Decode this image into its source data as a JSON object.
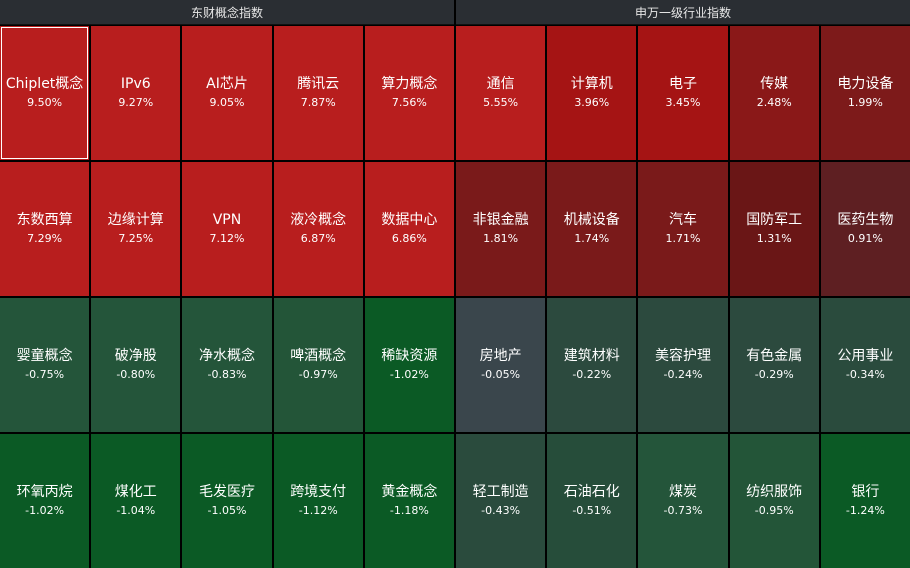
{
  "panels": [
    {
      "title": "东财概念指数",
      "cells": [
        {
          "name": "Chiplet概念",
          "value": "9.50%",
          "color": "#b81e1e",
          "selected": true
        },
        {
          "name": "IPv6",
          "value": "9.27%",
          "color": "#b81e1e"
        },
        {
          "name": "AI芯片",
          "value": "9.05%",
          "color": "#b81e1e"
        },
        {
          "name": "腾讯云",
          "value": "7.87%",
          "color": "#b81e1e"
        },
        {
          "name": "算力概念",
          "value": "7.56%",
          "color": "#b81e1e"
        },
        {
          "name": "东数西算",
          "value": "7.29%",
          "color": "#b81e1e"
        },
        {
          "name": "边缘计算",
          "value": "7.25%",
          "color": "#b81e1e"
        },
        {
          "name": "VPN",
          "value": "7.12%",
          "color": "#b81e1e"
        },
        {
          "name": "液冷概念",
          "value": "6.87%",
          "color": "#b81e1e"
        },
        {
          "name": "数据中心",
          "value": "6.86%",
          "color": "#b81e1e"
        },
        {
          "name": "婴童概念",
          "value": "-0.75%",
          "color": "#24553a"
        },
        {
          "name": "破净股",
          "value": "-0.80%",
          "color": "#24553a"
        },
        {
          "name": "净水概念",
          "value": "-0.83%",
          "color": "#24553a"
        },
        {
          "name": "啤酒概念",
          "value": "-0.97%",
          "color": "#235538"
        },
        {
          "name": "稀缺资源",
          "value": "-1.02%",
          "color": "#0b5a25"
        },
        {
          "name": "环氧丙烷",
          "value": "-1.02%",
          "color": "#0b5a25"
        },
        {
          "name": "煤化工",
          "value": "-1.04%",
          "color": "#0b5a25"
        },
        {
          "name": "毛发医疗",
          "value": "-1.05%",
          "color": "#0b5a25"
        },
        {
          "name": "跨境支付",
          "value": "-1.12%",
          "color": "#0b5a25"
        },
        {
          "name": "黄金概念",
          "value": "-1.18%",
          "color": "#0b5a25"
        }
      ]
    },
    {
      "title": "申万一级行业指数",
      "cells": [
        {
          "name": "通信",
          "value": "5.55%",
          "color": "#b81e1e"
        },
        {
          "name": "计算机",
          "value": "3.96%",
          "color": "#a51414"
        },
        {
          "name": "电子",
          "value": "3.45%",
          "color": "#a51414"
        },
        {
          "name": "传媒",
          "value": "2.48%",
          "color": "#8a1818"
        },
        {
          "name": "电力设备",
          "value": "1.99%",
          "color": "#7d1a1a"
        },
        {
          "name": "非银金融",
          "value": "1.81%",
          "color": "#7a1a1a"
        },
        {
          "name": "机械设备",
          "value": "1.74%",
          "color": "#7a1a1a"
        },
        {
          "name": "汽车",
          "value": "1.71%",
          "color": "#7a1a1a"
        },
        {
          "name": "国防军工",
          "value": "1.31%",
          "color": "#6a1616"
        },
        {
          "name": "医药生物",
          "value": "0.91%",
          "color": "#5e1f22"
        },
        {
          "name": "房地产",
          "value": "-0.05%",
          "color": "#3a464c"
        },
        {
          "name": "建筑材料",
          "value": "-0.22%",
          "color": "#2c4a3e"
        },
        {
          "name": "美容护理",
          "value": "-0.24%",
          "color": "#2c4a3e"
        },
        {
          "name": "有色金属",
          "value": "-0.29%",
          "color": "#2c4a3e"
        },
        {
          "name": "公用事业",
          "value": "-0.34%",
          "color": "#2a4b3d"
        },
        {
          "name": "轻工制造",
          "value": "-0.43%",
          "color": "#2a4b3d"
        },
        {
          "name": "石油石化",
          "value": "-0.51%",
          "color": "#264d3a"
        },
        {
          "name": "煤炭",
          "value": "-0.73%",
          "color": "#24553a"
        },
        {
          "name": "纺织服饰",
          "value": "-0.95%",
          "color": "#235538"
        },
        {
          "name": "银行",
          "value": "-1.24%",
          "color": "#0b5a25"
        }
      ]
    }
  ]
}
